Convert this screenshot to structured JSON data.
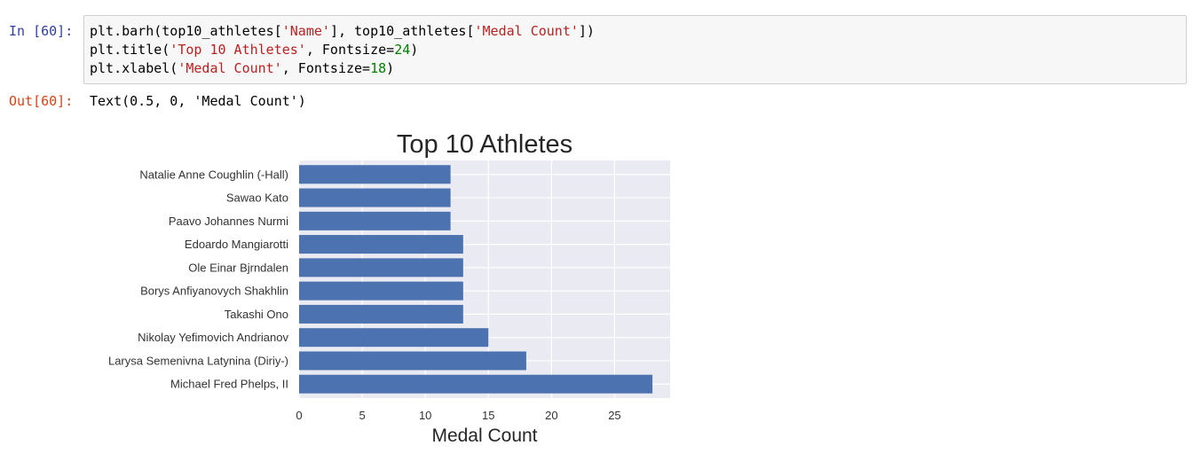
{
  "cell": {
    "in_prompt": "In [60]:",
    "out_prompt": "Out[60]:",
    "code": [
      [
        {
          "t": "plain",
          "s": "plt.barh(top10_athletes["
        },
        {
          "t": "str",
          "s": "'Name'"
        },
        {
          "t": "plain",
          "s": "], top10_athletes["
        },
        {
          "t": "str",
          "s": "'Medal Count'"
        },
        {
          "t": "plain",
          "s": "])"
        }
      ],
      [
        {
          "t": "plain",
          "s": "plt.title("
        },
        {
          "t": "str",
          "s": "'Top 10 Athletes'"
        },
        {
          "t": "plain",
          "s": ", Fontsize="
        },
        {
          "t": "num",
          "s": "24"
        },
        {
          "t": "plain",
          "s": ")"
        }
      ],
      [
        {
          "t": "plain",
          "s": "plt.xlabel("
        },
        {
          "t": "str",
          "s": "'Medal Count'"
        },
        {
          "t": "plain",
          "s": ", Fontsize="
        },
        {
          "t": "num",
          "s": "18"
        },
        {
          "t": "plain",
          "s": ")"
        }
      ]
    ],
    "output_text": "Text(0.5, 0, 'Medal Count')"
  },
  "chart_data": {
    "type": "bar",
    "orientation": "horizontal",
    "title": "Top 10 Athletes",
    "xlabel": "Medal Count",
    "ylabel": "",
    "categories": [
      "Michael Fred Phelps, II",
      "Larysa Semenivna Latynina (Diriy-)",
      "Nikolay Yefimovich Andrianov",
      "Takashi Ono",
      "Borys Anfiyanovych Shakhlin",
      "Ole Einar Bjrndalen",
      "Edoardo Mangiarotti",
      "Paavo Johannes Nurmi",
      "Sawao Kato",
      "Natalie Anne Coughlin (-Hall)"
    ],
    "values": [
      28,
      18,
      15,
      13,
      13,
      13,
      13,
      12,
      12,
      12
    ],
    "xlim": [
      0,
      29.4
    ],
    "xticks": [
      0,
      5,
      10,
      15,
      20,
      25
    ],
    "grid": true,
    "bar_color": "#4c72b0",
    "background_color": "#eaeaf2"
  },
  "colors": {
    "in_prompt": "#303f9f",
    "out_prompt": "#d84315",
    "string": "#ba2121",
    "number": "#008000"
  }
}
